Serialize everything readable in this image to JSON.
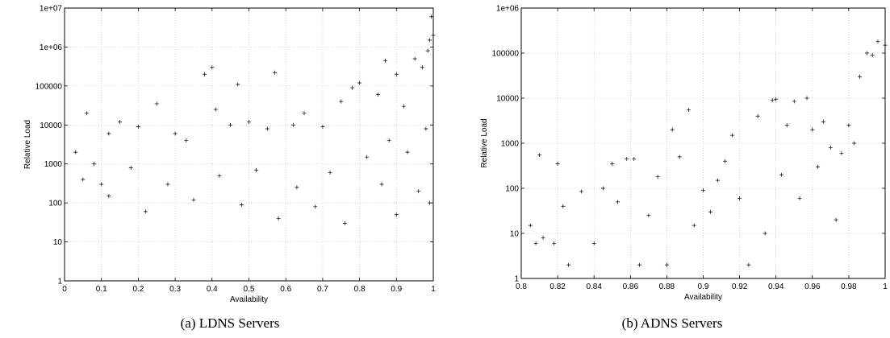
{
  "captions": [
    "(a) LDNS Servers",
    "(b) ADNS Servers"
  ],
  "chart_data": [
    {
      "type": "scatter",
      "title": "",
      "caption": "(a) LDNS Servers",
      "xlabel": "Availability",
      "ylabel": "Relative Load",
      "xlim": [
        0,
        1
      ],
      "ylim": [
        1,
        10000000
      ],
      "yscale": "log",
      "grid": true,
      "marker": "+",
      "color": "#000000",
      "x_ticks": [
        "0",
        "0.1",
        "0.2",
        "0.3",
        "0.4",
        "0.5",
        "0.6",
        "0.7",
        "0.8",
        "0.9",
        "1"
      ],
      "y_ticks": [
        "1",
        "10",
        "100",
        "1000",
        "10000",
        "100000",
        "1e+06",
        "1e+07"
      ],
      "points": [
        [
          0.03,
          2000
        ],
        [
          0.06,
          20000
        ],
        [
          0.08,
          1000
        ],
        [
          0.1,
          300
        ],
        [
          0.12,
          6000
        ],
        [
          0.15,
          12000
        ],
        [
          0.2,
          9000
        ],
        [
          0.25,
          35000
        ],
        [
          0.3,
          6000
        ],
        [
          0.33,
          4000
        ],
        [
          0.38,
          200000
        ],
        [
          0.4,
          300000
        ],
        [
          0.41,
          25000
        ],
        [
          0.45,
          10000
        ],
        [
          0.47,
          110000
        ],
        [
          0.5,
          12000
        ],
        [
          0.55,
          8000
        ],
        [
          0.57,
          220000
        ],
        [
          0.62,
          10000
        ],
        [
          0.65,
          20000
        ],
        [
          0.7,
          9000
        ],
        [
          0.75,
          40000
        ],
        [
          0.78,
          90000
        ],
        [
          0.8,
          120000
        ],
        [
          0.85,
          60000
        ],
        [
          0.87,
          450000
        ],
        [
          0.9,
          200000
        ],
        [
          0.92,
          30000
        ],
        [
          0.95,
          500000
        ],
        [
          0.97,
          300000
        ],
        [
          0.985,
          800000
        ],
        [
          0.99,
          1500000
        ],
        [
          0.995,
          6000000
        ],
        [
          1.0,
          2000000
        ],
        [
          0.05,
          400
        ],
        [
          0.12,
          150
        ],
        [
          0.18,
          800
        ],
        [
          0.22,
          60
        ],
        [
          0.28,
          300
        ],
        [
          0.35,
          120
        ],
        [
          0.42,
          500
        ],
        [
          0.48,
          90
        ],
        [
          0.52,
          700
        ],
        [
          0.58,
          40
        ],
        [
          0.63,
          250
        ],
        [
          0.68,
          80
        ],
        [
          0.72,
          600
        ],
        [
          0.76,
          30
        ],
        [
          0.82,
          1500
        ],
        [
          0.86,
          300
        ],
        [
          0.88,
          4000
        ],
        [
          0.9,
          50
        ],
        [
          0.93,
          2000
        ],
        [
          0.96,
          200
        ],
        [
          0.98,
          8000
        ],
        [
          0.99,
          100
        ]
      ]
    },
    {
      "type": "scatter",
      "title": "",
      "caption": "(b) ADNS Servers",
      "xlabel": "Availability",
      "ylabel": "Relative Load",
      "xlim": [
        0.8,
        1
      ],
      "ylim": [
        1,
        1000000
      ],
      "yscale": "log",
      "grid": true,
      "marker": "+",
      "color": "#000000",
      "x_ticks": [
        "0.8",
        "0.82",
        "0.84",
        "0.86",
        "0.88",
        "0.9",
        "0.92",
        "0.94",
        "0.96",
        "0.98",
        "1"
      ],
      "y_ticks": [
        "1",
        "10",
        "100",
        "1000",
        "10000",
        "100000",
        "1e+06"
      ],
      "points": [
        [
          0.805,
          15
        ],
        [
          0.808,
          6
        ],
        [
          0.81,
          550
        ],
        [
          0.812,
          8
        ],
        [
          0.818,
          6
        ],
        [
          0.82,
          350
        ],
        [
          0.823,
          40
        ],
        [
          0.826,
          2
        ],
        [
          0.833,
          85
        ],
        [
          0.84,
          6
        ],
        [
          0.845,
          100
        ],
        [
          0.85,
          350
        ],
        [
          0.853,
          50
        ],
        [
          0.858,
          450
        ],
        [
          0.862,
          450
        ],
        [
          0.865,
          2
        ],
        [
          0.87,
          25
        ],
        [
          0.875,
          180
        ],
        [
          0.88,
          2
        ],
        [
          0.883,
          2000
        ],
        [
          0.887,
          500
        ],
        [
          0.892,
          5500
        ],
        [
          0.895,
          15
        ],
        [
          0.9,
          90
        ],
        [
          0.904,
          30
        ],
        [
          0.908,
          150
        ],
        [
          0.912,
          400
        ],
        [
          0.916,
          1500
        ],
        [
          0.92,
          60
        ],
        [
          0.925,
          2
        ],
        [
          0.93,
          4000
        ],
        [
          0.934,
          10
        ],
        [
          0.938,
          9000
        ],
        [
          0.94,
          9500
        ],
        [
          0.943,
          200
        ],
        [
          0.946,
          2500
        ],
        [
          0.95,
          8500
        ],
        [
          0.953,
          60
        ],
        [
          0.957,
          10000
        ],
        [
          0.96,
          2000
        ],
        [
          0.963,
          300
        ],
        [
          0.966,
          3000
        ],
        [
          0.97,
          800
        ],
        [
          0.973,
          20
        ],
        [
          0.976,
          600
        ],
        [
          0.98,
          2500
        ],
        [
          0.983,
          1000
        ],
        [
          0.986,
          30000
        ],
        [
          0.99,
          100000
        ],
        [
          0.993,
          90000
        ],
        [
          0.996,
          180000
        ],
        [
          1.0,
          150000
        ]
      ]
    }
  ]
}
